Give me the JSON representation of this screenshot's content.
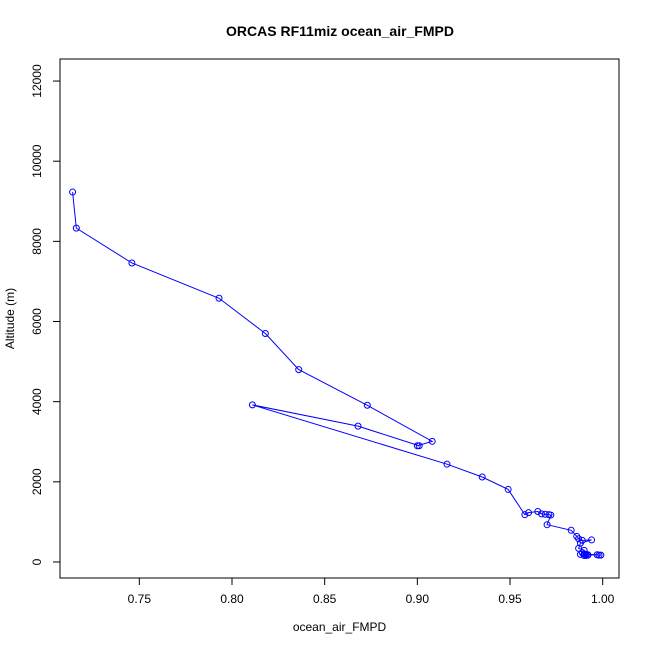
{
  "chart_data": {
    "type": "line",
    "title": "ORCAS RF11miz ocean_air_FMPD",
    "xlabel": "ocean_air_FMPD",
    "ylabel": "Altitude (m)",
    "xlim": [
      0.7072,
      1.0088
    ],
    "ylim": [
      -400,
      12550
    ],
    "x_ticks": [
      0.75,
      0.8,
      0.85,
      0.9,
      0.95,
      1.0
    ],
    "x_tick_labels": [
      "0.75",
      "0.80",
      "0.85",
      "0.90",
      "0.95",
      "1.00"
    ],
    "y_ticks": [
      0,
      2000,
      4000,
      6000,
      8000,
      10000,
      12000
    ],
    "y_tick_labels": [
      "0",
      "2000",
      "4000",
      "6000",
      "8000",
      "10000",
      "12000"
    ],
    "grid": false,
    "legend": "none",
    "marker": "open-circle",
    "series": [
      {
        "color": "#0000ff",
        "points": [
          [
            0.714,
            9230
          ],
          [
            0.716,
            8330
          ],
          [
            0.746,
            7460
          ],
          [
            0.793,
            6580
          ],
          [
            0.818,
            5700
          ],
          [
            0.836,
            4800
          ],
          [
            0.873,
            3910
          ],
          [
            0.908,
            3010
          ],
          [
            0.9,
            2900
          ],
          [
            0.901,
            2900
          ],
          [
            0.868,
            3390
          ],
          [
            0.811,
            3920
          ],
          [
            0.916,
            2440
          ],
          [
            0.935,
            2120
          ],
          [
            0.949,
            1810
          ],
          [
            0.958,
            1180
          ],
          [
            0.96,
            1230
          ],
          [
            0.965,
            1260
          ],
          [
            0.967,
            1200
          ],
          [
            0.969,
            1190
          ],
          [
            0.971,
            1180
          ],
          [
            0.972,
            1170
          ],
          [
            0.97,
            930
          ],
          [
            0.983,
            790
          ],
          [
            0.986,
            640
          ],
          [
            0.987,
            580
          ],
          [
            0.989,
            540
          ],
          [
            0.994,
            550
          ],
          [
            0.988,
            470
          ],
          [
            0.987,
            340
          ],
          [
            0.99,
            290
          ],
          [
            0.988,
            190
          ],
          [
            0.99,
            160
          ],
          [
            0.991,
            160
          ],
          [
            0.992,
            170
          ],
          [
            0.997,
            180
          ],
          [
            0.998,
            170
          ],
          [
            0.999,
            170
          ],
          [
            0.99,
            200
          ],
          [
            0.989,
            230
          ],
          [
            0.991,
            190
          ],
          [
            0.992,
            180
          ]
        ]
      }
    ]
  }
}
